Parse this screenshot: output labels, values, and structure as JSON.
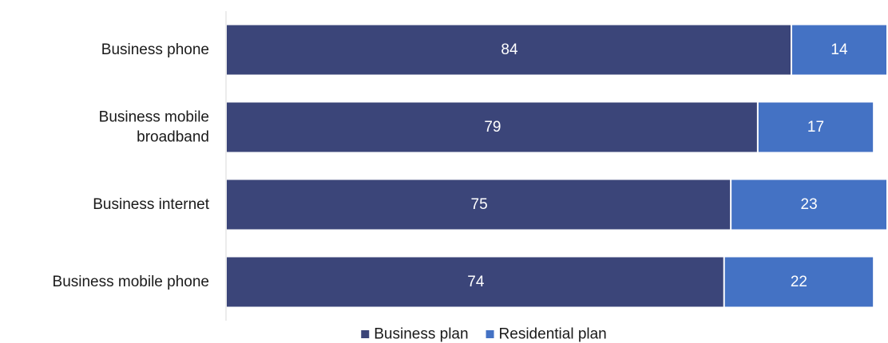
{
  "chart_data": {
    "type": "bar",
    "orientation": "horizontal",
    "stacked": true,
    "categories": [
      [
        "Business phone"
      ],
      [
        "Business mobile",
        "broadband"
      ],
      [
        "Business internet"
      ],
      [
        "Business mobile phone"
      ]
    ],
    "series": [
      {
        "name": "Business plan",
        "color": "#3b4579",
        "values": [
          84,
          79,
          75,
          74
        ]
      },
      {
        "name": "Residential plan",
        "color": "#4472c4",
        "values": [
          14,
          17,
          23,
          22
        ]
      }
    ],
    "xlim": [
      0,
      98
    ],
    "data_labels": true,
    "grid": false,
    "legend": "bottom-center"
  }
}
